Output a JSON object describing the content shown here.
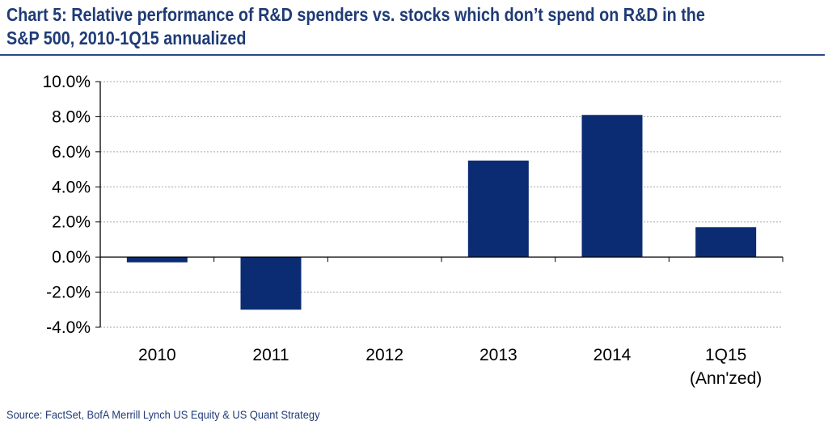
{
  "title_lines": [
    "Chart 5: Relative performance of R&D spenders vs. stocks which don’t spend on R&D in the",
    "S&P 500, 2010-1Q15 annualized"
  ],
  "source": "Source: FactSet, BofA Merrill Lynch US Equity & US Quant Strategy",
  "colors": {
    "bar": "#0b2c73",
    "title": "#1f3b76",
    "grid": "#a6a6a6"
  },
  "chart_data": {
    "type": "bar",
    "title": "Chart 5: Relative performance of R&D spenders vs. stocks which don’t spend on R&D in the S&P 500, 2010-1Q15 annualized",
    "categories": [
      [
        "2010"
      ],
      [
        "2011"
      ],
      [
        "2012"
      ],
      [
        "2013"
      ],
      [
        "2014"
      ],
      [
        "1Q15",
        "(Ann'zed)"
      ]
    ],
    "values": [
      -0.3,
      -3.0,
      0.0,
      5.5,
      8.1,
      1.7
    ],
    "ylim": [
      -4.0,
      10.0
    ],
    "yticks": [
      10.0,
      8.0,
      6.0,
      4.0,
      2.0,
      0.0,
      -2.0,
      -4.0
    ],
    "ytick_labels": [
      "10.0%",
      "8.0%",
      "6.0%",
      "4.0%",
      "2.0%",
      "0.0%",
      "-2.0%",
      "-4.0%"
    ],
    "grid": true,
    "legend": "none",
    "xlabel": "",
    "ylabel": ""
  }
}
